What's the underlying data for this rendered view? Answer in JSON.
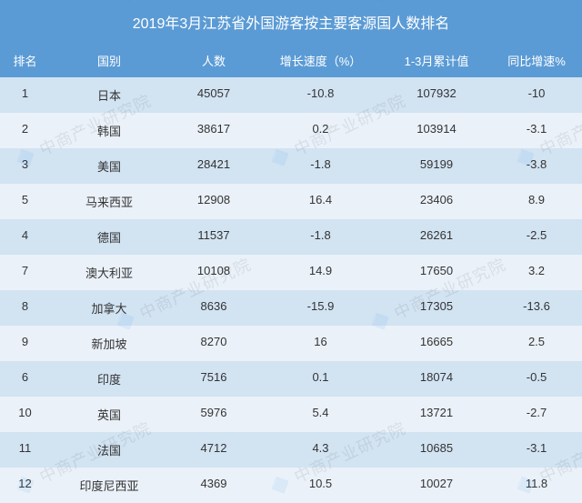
{
  "title": "2019年3月江苏省外国游客按主要客源国人数排名",
  "columns": [
    "排名",
    "国别",
    "人数",
    "增长速度（%）",
    "1-3月累计值",
    "同比增速%"
  ],
  "rows": [
    {
      "rank": "1",
      "country": "日本",
      "count": "45057",
      "growth": "-10.8",
      "cumulative": "107932",
      "yoy": "-10"
    },
    {
      "rank": "2",
      "country": "韩国",
      "count": "38617",
      "growth": "0.2",
      "cumulative": "103914",
      "yoy": "-3.1"
    },
    {
      "rank": "3",
      "country": "美国",
      "count": "28421",
      "growth": "-1.8",
      "cumulative": "59199",
      "yoy": "-3.8"
    },
    {
      "rank": "5",
      "country": "马来西亚",
      "count": "12908",
      "growth": "16.4",
      "cumulative": "23406",
      "yoy": "8.9"
    },
    {
      "rank": "4",
      "country": "德国",
      "count": "11537",
      "growth": "-1.8",
      "cumulative": "26261",
      "yoy": "-2.5"
    },
    {
      "rank": "7",
      "country": "澳大利亚",
      "count": "10108",
      "growth": "14.9",
      "cumulative": "17650",
      "yoy": "3.2"
    },
    {
      "rank": "8",
      "country": "加拿大",
      "count": "8636",
      "growth": "-15.9",
      "cumulative": "17305",
      "yoy": "-13.6"
    },
    {
      "rank": "9",
      "country": "新加坡",
      "count": "8270",
      "growth": "16",
      "cumulative": "16665",
      "yoy": "2.5"
    },
    {
      "rank": "6",
      "country": "印度",
      "count": "7516",
      "growth": "0.1",
      "cumulative": "18074",
      "yoy": "-0.5"
    },
    {
      "rank": "10",
      "country": "英国",
      "count": "5976",
      "growth": "5.4",
      "cumulative": "13721",
      "yoy": "-2.7"
    },
    {
      "rank": "11",
      "country": "法国",
      "count": "4712",
      "growth": "4.3",
      "cumulative": "10685",
      "yoy": "-3.1"
    },
    {
      "rank": "12",
      "country": "印度尼西亚",
      "count": "4369",
      "growth": "10.5",
      "cumulative": "10027",
      "yoy": "11.8"
    }
  ],
  "watermark_text": "中商产业研究院",
  "style": {
    "header_bg": "#5b9bd5",
    "header_color": "#ffffff",
    "row_odd_bg": "#d2e3f2",
    "row_even_bg": "#eaf1f9",
    "text_color": "#333333",
    "title_fontsize": 16,
    "cell_fontsize": 13,
    "watermark_color": "rgba(0,0,0,0.08)"
  }
}
